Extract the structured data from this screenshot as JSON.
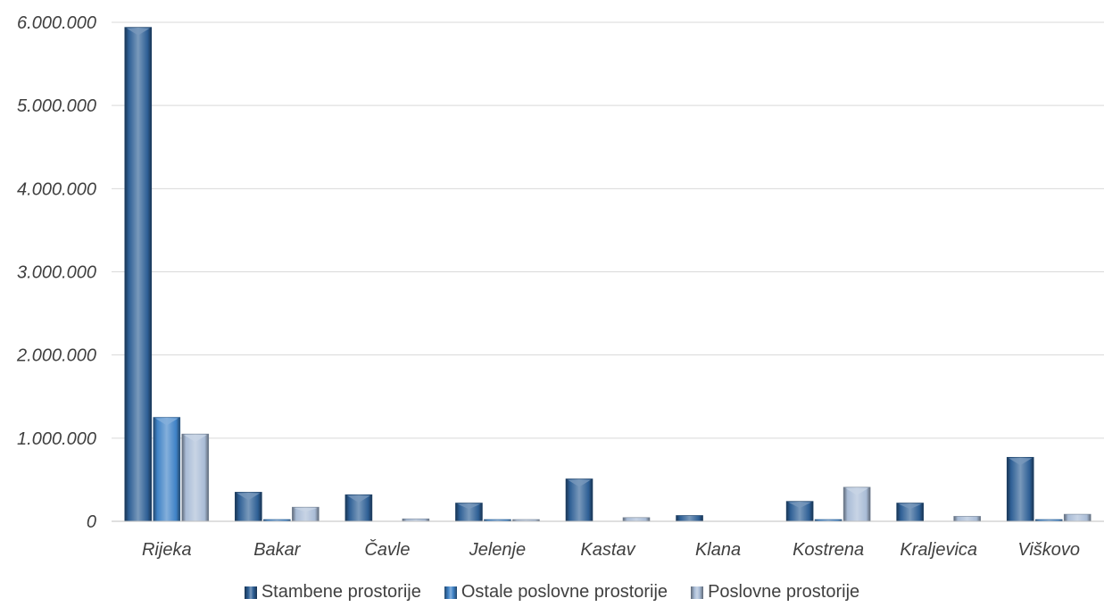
{
  "chart_data": {
    "type": "bar",
    "categories": [
      "Rijeka",
      "Bakar",
      "Čavle",
      "Jelenje",
      "Kastav",
      "Klana",
      "Kostrena",
      "Kraljevica",
      "Viškovo"
    ],
    "series": [
      {
        "name": "Stambene prostorije",
        "color": "#2e5f95",
        "values": [
          5940000,
          350000,
          320000,
          220000,
          510000,
          70000,
          240000,
          220000,
          770000
        ]
      },
      {
        "name": "Ostale poslovne prostorije",
        "color": "#3f82c6",
        "values": [
          1250000,
          15000,
          0,
          12000,
          0,
          0,
          15000,
          0,
          15000
        ]
      },
      {
        "name": "Poslovne prostorije",
        "color": "#a9bcd6",
        "values": [
          1050000,
          170000,
          30000,
          12000,
          45000,
          0,
          410000,
          60000,
          85000
        ]
      }
    ],
    "ylim": [
      0,
      6000000
    ],
    "yticks": [
      0,
      1000000,
      2000000,
      3000000,
      4000000,
      5000000,
      6000000
    ],
    "ytick_labels": [
      "0",
      "1.000.000",
      "2.000.000",
      "3.000.000",
      "4.000.000",
      "5.000.000",
      "6.000.000"
    ],
    "grid": true,
    "legend_position": "bottom"
  }
}
